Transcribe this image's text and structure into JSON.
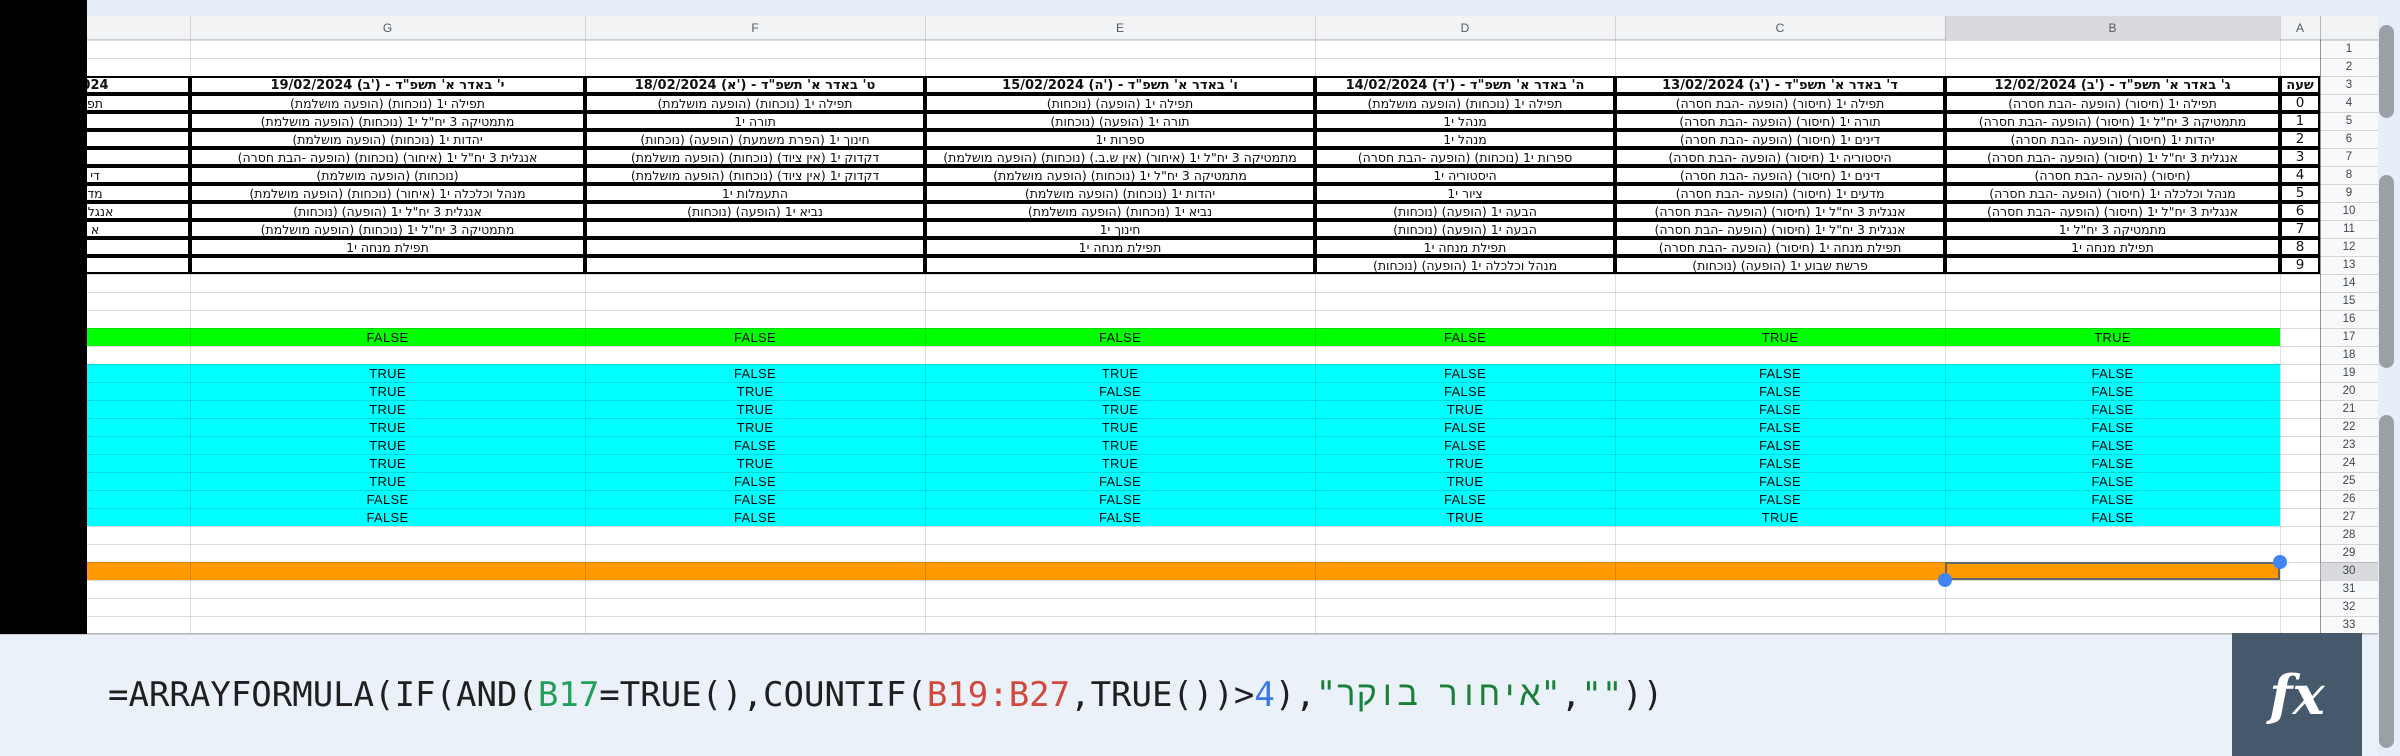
{
  "app": {
    "formula_bar": {
      "tokens": [
        {
          "text": "=ARRAYFORMULA(IF(AND(",
          "color": "default"
        },
        {
          "text": "B17",
          "color": "range_green"
        },
        {
          "text": "=TRUE(),COUNTIF(",
          "color": "default"
        },
        {
          "text": "B19:B27",
          "color": "range_red"
        },
        {
          "text": ",TRUE())>",
          "color": "default"
        },
        {
          "text": "4",
          "color": "number_blue"
        },
        {
          "text": "),",
          "color": "default"
        },
        {
          "text": "\"איחור בוקר\"",
          "color": "string_green"
        },
        {
          "text": ",",
          "color": "default"
        },
        {
          "text": "\"\"",
          "color": "string_green"
        },
        {
          "text": "))",
          "color": "default"
        }
      ],
      "fx_label": "fx"
    },
    "colors": {
      "true_row_green": "#00ff00",
      "range_cyan": "#00ffff",
      "orange_row": "#ff9900",
      "selection_handle_blue": "#4285f4",
      "token_default": "#1f1f1f",
      "token_range_green": "#24a05a",
      "token_string_green": "#188038",
      "token_range_red": "#d0493c",
      "token_number_blue": "#3b78e7"
    }
  },
  "grid": {
    "hour_column": {
      "letter": "A",
      "header": "שעה",
      "values": [
        "0",
        "1",
        "2",
        "3",
        "4",
        "5",
        "6",
        "7",
        "8",
        "9"
      ]
    },
    "row_numbers": [
      "1",
      "2",
      "3",
      "4",
      "5",
      "6",
      "7",
      "8",
      "9",
      "10",
      "11",
      "12",
      "13",
      "14",
      "15",
      "16",
      "17",
      "18",
      "19",
      "20",
      "21",
      "22",
      "23",
      "24",
      "25",
      "26",
      "27",
      "28",
      "29",
      "30",
      "31",
      "32",
      "33"
    ],
    "selected_cell": {
      "column": "B",
      "row": "30"
    },
    "columns": [
      {
        "letter": "",
        "date": "024",
        "cells": [
          "תפ",
          "",
          "",
          "",
          "די",
          "מד",
          "אנגלית",
          "א",
          "",
          ""
        ],
        "row17": "",
        "rows19_27": [
          "",
          "",
          "",
          "",
          "",
          "",
          "",
          "",
          ""
        ]
      },
      {
        "letter": "G",
        "date": "19/02/2024 (ב') - י' באדר א' תשפ\"ד",
        "cells": [
          "תפילה י1 (נוכחות) (הופעה מושלמת)",
          "מתמטיקה 3 יח\"ל י1 (נוכחות) (הופעה מושלמת)",
          "יהדות י1 (נוכחות) (הופעה מושלמת)",
          "אנגלית 3 יח\"ל י1 (איחור) (נוכחות) (הופעה -הבת חסרה)",
          "(נוכחות) (הופעה מושלמת)",
          "מנהל וכלכלה י1 (איחור) (נוכחות) (הופעה מושלמת)",
          "אנגלית 3 יח\"ל י1 (הופעה) (נוכחות)",
          "מתמטיקה 3 יח\"ל י1 (נוכחות) (הופעה מושלמת)",
          "תפילת מנחה י1",
          ""
        ],
        "row17": "FALSE",
        "rows19_27": [
          "TRUE",
          "TRUE",
          "TRUE",
          "TRUE",
          "TRUE",
          "TRUE",
          "TRUE",
          "FALSE",
          "FALSE"
        ]
      },
      {
        "letter": "F",
        "date": "18/02/2024 (א') - ט' באדר א' תשפ\"ד",
        "cells": [
          "תפילה י1 (נוכחות) (הופעה מושלמת)",
          "תורה י1",
          "חינוך י1 (הפרת משמעת) (הופעה) (נוכחות)",
          "דקדוק י1 (אין ציוד) (נוכחות) (הופעה מושלמת)",
          "דקדוק י1 (אין ציוד) (נוכחות) (הופעה מושלמת)",
          "התעמלות י1",
          "נביא י1 (הופעה) (נוכחות)",
          "",
          "",
          ""
        ],
        "row17": "FALSE",
        "rows19_27": [
          "FALSE",
          "TRUE",
          "TRUE",
          "TRUE",
          "FALSE",
          "TRUE",
          "FALSE",
          "FALSE",
          "FALSE"
        ]
      },
      {
        "letter": "E",
        "date": "15/02/2024 (ה') - ו' באדר א' תשפ\"ד",
        "cells": [
          "תפילה י1 (הופעה) (נוכחות)",
          "תורה י1 (הופעה) (נוכחות)",
          "ספרות י1",
          "מתמטיקה 3 יח\"ל י1 (איחור) (אין ש.ב.) (נוכחות) (הופעה מושלמת)",
          "מתמטיקה 3 יח\"ל י1 (נוכחות) (הופעה מושלמת)",
          "יהדות י1 (נוכחות) (הופעה מושלמת)",
          "נביא י1 (נוכחות) (הופעה מושלמת)",
          "חינוך י1",
          "תפילת מנחה י1",
          ""
        ],
        "row17": "FALSE",
        "rows19_27": [
          "TRUE",
          "FALSE",
          "TRUE",
          "TRUE",
          "TRUE",
          "TRUE",
          "FALSE",
          "FALSE",
          "FALSE"
        ]
      },
      {
        "letter": "D",
        "date": "14/02/2024 (ד') - ה' באדר א' תשפ\"ד",
        "cells": [
          "תפילה י1 (נוכחות) (הופעה מושלמת)",
          "מנהל י1",
          "מנהל י1",
          "ספרות י1 (נוכחות) (הופעה -הבת חסרה)",
          "היסטוריה י1",
          "ציור י1",
          "הבעה י1 (הופעה) (נוכחות)",
          "הבעה י1 (הופעה) (נוכחות)",
          "תפילת מנחה י1",
          "מנהל וכלכלה י1 (הופעה) (נוכחות)"
        ],
        "row17": "FALSE",
        "rows19_27": [
          "FALSE",
          "FALSE",
          "TRUE",
          "FALSE",
          "FALSE",
          "TRUE",
          "TRUE",
          "FALSE",
          "TRUE"
        ]
      },
      {
        "letter": "C",
        "date": "13/02/2024 (ג') - ד' באדר א' תשפ\"ד",
        "cells": [
          "תפילה י1 (חיסור) (הופעה -הבת חסרה)",
          "תורה י1 (חיסור) (הופעה -הבת חסרה)",
          "דינים י1 (חיסור) (הופעה -הבת חסרה)",
          "היסטוריה י1 (חיסור) (הופעה -הבת חסרה)",
          "דינים י1 (חיסור) (הופעה -הבת חסרה)",
          "מדעים י1 (חיסור) (הופעה -הבת חסרה)",
          "אנגלית 3 יח\"ל י1 (חיסור) (הופעה -הבת חסרה)",
          "אנגלית 3 יח\"ל י1 (חיסור) (הופעה -הבת חסרה)",
          "תפילת מנחה י1 (חיסור) (הופעה -הבת חסרה)",
          "פרשת שבוע י1 (הופעה) (נוכחות)"
        ],
        "row17": "TRUE",
        "rows19_27": [
          "FALSE",
          "FALSE",
          "FALSE",
          "FALSE",
          "FALSE",
          "FALSE",
          "FALSE",
          "FALSE",
          "TRUE"
        ]
      },
      {
        "letter": "B",
        "selected_column": true,
        "date": "12/02/2024 (ב') - ג' באדר א' תשפ\"ד",
        "cells": [
          "תפילה י1 (חיסור) (הופעה -הבת חסרה)",
          "מתמטיקה 3 יח\"ל י1 (חיסור) (הופעה -הבת חסרה)",
          "יהדות י1 (חיסור) (הופעה -הבת חסרה)",
          "אנגלית 3 יח\"ל י1 (חיסור) (הופעה -הבת חסרה)",
          "(חיסור) (הופעה -הבת חסרה)",
          "מנהל וכלכלה י1 (חיסור) (הופעה -הבת חסרה)",
          "אנגלית 3 יח\"ל י1 (חיסור) (הופעה -הבת חסרה)",
          "מתמטיקה 3 יח\"ל י1",
          "תפילת מנחה י1",
          ""
        ],
        "row17": "TRUE",
        "rows19_27": [
          "FALSE",
          "FALSE",
          "FALSE",
          "FALSE",
          "FALSE",
          "FALSE",
          "FALSE",
          "FALSE",
          "FALSE"
        ]
      }
    ]
  }
}
